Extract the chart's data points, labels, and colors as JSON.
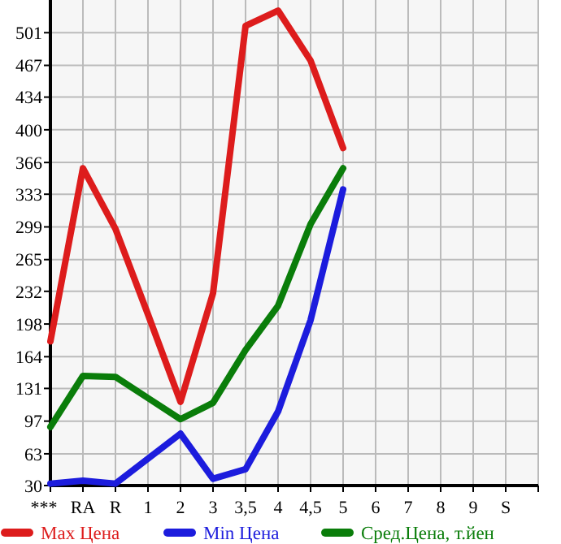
{
  "chart_data": {
    "type": "line",
    "categories": [
      "***",
      "RA",
      "R",
      "1",
      "2",
      "3",
      "3,5",
      "4",
      "4,5",
      "5",
      "6",
      "7",
      "8",
      "9",
      "S"
    ],
    "series": [
      {
        "name": "Max Цена",
        "color": "#dd1c1c",
        "values": [
          180,
          360,
          297,
          208,
          117,
          230,
          508,
          524,
          472,
          381,
          null,
          null,
          null,
          null,
          null
        ]
      },
      {
        "name": "Min Цена",
        "color": "#1c1cdd",
        "values": [
          32,
          35,
          32,
          58,
          84,
          37,
          47,
          107,
          202,
          338,
          null,
          null,
          null,
          null,
          null
        ]
      },
      {
        "name": "Сред.Цена, т.йен",
        "color": "#0a7d0a",
        "values": [
          91,
          144,
          143,
          121,
          99,
          116,
          171,
          217,
          302,
          360,
          null,
          null,
          null,
          null,
          null
        ]
      }
    ],
    "ylim": [
      30,
      535
    ],
    "yticks": [
      30,
      63,
      97,
      131,
      164,
      198,
      232,
      265,
      299,
      333,
      366,
      400,
      434,
      467,
      501
    ],
    "grid": true,
    "legend": "bottom",
    "marker": "none",
    "line_style": "solid"
  }
}
